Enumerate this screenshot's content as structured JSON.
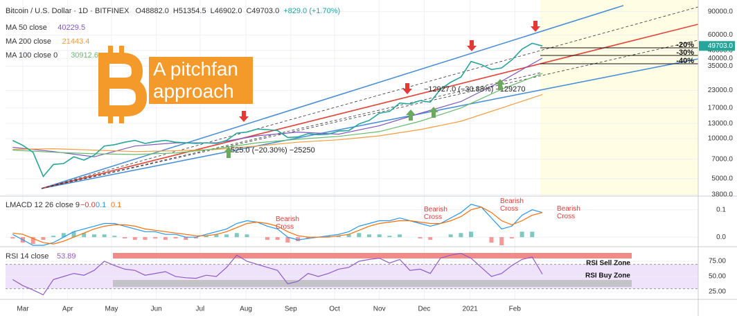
{
  "chart_data": {
    "type": "line",
    "title": "Bitcoin / U.S. Dollar · 1D · BITFINEX",
    "ohlc": [
      "O48882.0",
      "H51354.5",
      "L46902.0",
      "C49703.0"
    ],
    "change": "+829.0 (+1.70%)",
    "overlay_title": "A pitchfan approach",
    "x": [
      -1,
      0,
      1,
      2,
      3,
      4,
      5,
      6,
      7,
      8,
      9,
      10,
      11,
      12,
      13,
      14,
      15,
      16,
      17,
      18,
      19,
      20,
      21,
      22,
      23,
      24,
      25,
      26,
      27,
      28,
      29,
      30,
      31,
      32,
      33,
      34,
      35,
      36,
      37,
      38,
      39,
      40,
      41,
      42,
      43,
      44,
      45,
      46,
      47,
      48,
      49,
      50,
      51
    ],
    "values": [
      9700,
      8900,
      7900,
      5200,
      6400,
      6500,
      7300,
      6900,
      7500,
      8800,
      9000,
      9400,
      9700,
      9200,
      9500,
      9700,
      9400,
      9300,
      9200,
      9300,
      9200,
      9700,
      11000,
      11200,
      11800,
      11700,
      11500,
      10200,
      10300,
      10900,
      10700,
      10800,
      11400,
      11500,
      12900,
      13700,
      15500,
      16000,
      18500,
      18200,
      19300,
      18800,
      23500,
      26500,
      29000,
      38000,
      36000,
      33000,
      34000,
      39000,
      47000,
      52000,
      49703
    ],
    "color": "#26a69a",
    "xlim": [
      -1.7,
      66.3
    ],
    "xticks": [
      {
        "value": 0,
        "label": "Mar"
      },
      {
        "value": 4.4,
        "label": "Apr"
      },
      {
        "value": 8.7,
        "label": "May"
      },
      {
        "value": 13.1,
        "label": "Jun"
      },
      {
        "value": 17.4,
        "label": "Jul"
      },
      {
        "value": 21.9,
        "label": "Aug"
      },
      {
        "value": 26.3,
        "label": "Sep"
      },
      {
        "value": 30.6,
        "label": "Oct"
      },
      {
        "value": 35,
        "label": "Nov"
      },
      {
        "value": 39.4,
        "label": "Dec"
      },
      {
        "value": 43.9,
        "label": "2021"
      },
      {
        "value": 48.3,
        "label": "Feb"
      }
    ],
    "ylim": [
      3700,
      110000
    ],
    "log_scale": true,
    "grid": true,
    "yticks": [
      {
        "value": 90000,
        "label": "90000.0"
      },
      {
        "value": 60000,
        "label": "60000.0"
      },
      {
        "value": 46000,
        "label": "46000.0"
      },
      {
        "value": 40000,
        "label": "40000.0"
      },
      {
        "value": 35000,
        "label": "35000.0"
      },
      {
        "value": 23000,
        "label": "23000.0"
      },
      {
        "value": 17000,
        "label": "17000.0"
      },
      {
        "value": 13000,
        "label": "13000.0"
      },
      {
        "value": 10000,
        "label": "10000.0"
      },
      {
        "value": 7000,
        "label": "7000.0"
      },
      {
        "value": 5000,
        "label": "5000.0"
      },
      {
        "value": 3800,
        "label": "3800.0"
      }
    ],
    "price_label": {
      "value": 49703,
      "label": "49703.0"
    },
    "series": [
      {
        "name": "MA 50 close",
        "legend_value": "40229.5",
        "color": "#7e57c2",
        "x": [
          -1,
          3,
          7,
          11,
          15,
          19,
          23,
          27,
          31,
          35,
          39,
          43,
          47,
          51
        ],
        "values": [
          8600,
          8000,
          7300,
          8800,
          9300,
          9300,
          10500,
          11200,
          10800,
          12500,
          15500,
          19000,
          27000,
          40229.5
        ]
      },
      {
        "name": "MA 200 close",
        "legend_value": "21443.4",
        "color": "#f59b3a",
        "x": [
          -1,
          3,
          7,
          11,
          15,
          19,
          23,
          27,
          31,
          35,
          39,
          43,
          47,
          51
        ],
        "values": [
          8300,
          8400,
          8200,
          8000,
          8100,
          8300,
          8800,
          9400,
          9800,
          10500,
          11700,
          13500,
          17000,
          21443.4
        ]
      },
      {
        "name": "MA 100 close 0",
        "legend_value": "30912.6",
        "color": "#66bb6a",
        "x": [
          -1,
          3,
          7,
          11,
          15,
          19,
          23,
          27,
          31,
          35,
          39,
          43,
          47,
          51
        ],
        "values": [
          8200,
          7900,
          7700,
          7600,
          7800,
          8400,
          9300,
          9900,
          10400,
          11300,
          13500,
          17000,
          23500,
          30912.6
        ]
      }
    ],
    "fib_labels": [
      "-20%",
      "-30%",
      "-40%"
    ],
    "measures": [
      "−12927.0 (−30.88%) −129270",
      "525.0 (−20.30%) −25250"
    ],
    "panels": [
      {
        "type": "macd",
        "title": "LMACD 12 26 close 9",
        "legend_values": [
          "−0.0",
          "0.1",
          "0.1"
        ],
        "ylim": [
          -0.035,
          0.15
        ],
        "yticks": [
          {
            "value": 0.1,
            "label": "0.1"
          },
          {
            "value": 0,
            "label": "0.0"
          }
        ],
        "series": [
          {
            "color": "#2196f3",
            "values": [
              0.01,
              -0.01,
              -0.03,
              -0.03,
              -0.02,
              0,
              0.02,
              0.03,
              0.04,
              0.05,
              0.05,
              0.04,
              0.03,
              0.02,
              0.02,
              0.01,
              0.01,
              0,
              0,
              0.01,
              0.02,
              0.03,
              0.05,
              0.06,
              0.055,
              0.04,
              0.03,
              0,
              -0.01,
              -0.005,
              0,
              0.005,
              0.01,
              0.02,
              0.04,
              0.05,
              0.06,
              0.06,
              0.07,
              0.06,
              0.05,
              0.04,
              0.05,
              0.07,
              0.09,
              0.12,
              0.11,
              0.07,
              0.03,
              0.04,
              0.08,
              0.1,
              0.09
            ]
          },
          {
            "color": "#ff6d00",
            "values": [
              0.015,
              0.01,
              -0.005,
              -0.02,
              -0.025,
              -0.015,
              0,
              0.015,
              0.03,
              0.04,
              0.045,
              0.045,
              0.04,
              0.03,
              0.025,
              0.02,
              0.015,
              0.01,
              0.005,
              0.005,
              0.01,
              0.02,
              0.035,
              0.05,
              0.055,
              0.05,
              0.04,
              0.02,
              0.005,
              0,
              0,
              0,
              0.005,
              0.01,
              0.025,
              0.04,
              0.05,
              0.055,
              0.06,
              0.06,
              0.055,
              0.05,
              0.05,
              0.06,
              0.075,
              0.1,
              0.11,
              0.09,
              0.06,
              0.045,
              0.06,
              0.08,
              0.09
            ]
          }
        ],
        "histogram": {
          "up_color": "#26a69a",
          "down_color": "#ef5350",
          "values": [
            -0.005,
            -0.02,
            -0.025,
            -0.01,
            0.005,
            0.015,
            0.02,
            0.015,
            0.01,
            0.01,
            0.005,
            -0.005,
            -0.01,
            -0.01,
            -0.005,
            -0.01,
            -0.005,
            -0.01,
            -0.005,
            0.005,
            0.01,
            0.01,
            0.015,
            0.01,
            0,
            -0.01,
            -0.01,
            -0.02,
            -0.015,
            -0.005,
            0,
            0.005,
            0.005,
            0.01,
            0.015,
            0.01,
            0.01,
            0.005,
            0.01,
            0,
            -0.005,
            -0.01,
            0,
            0.01,
            0.015,
            0.02,
            0,
            -0.02,
            -0.03,
            -0.005,
            0.02,
            0.02,
            0
          ]
        },
        "annotations": [
          "Bearish Cross",
          "Bearish Cross",
          "Bearish Cross",
          "Bearish Cross"
        ]
      },
      {
        "type": "rsi",
        "title": "RSI 14 close",
        "legend_value": "53.89",
        "color": "#8e5bc9",
        "ylim": [
          12.5,
          96.6
        ],
        "yticks": [
          {
            "value": 75,
            "label": "75.00"
          },
          {
            "value": 50,
            "label": "50.00"
          },
          {
            "value": 25,
            "label": "25.00"
          }
        ],
        "band": [
          30,
          70
        ],
        "band_color": "#efe3fb",
        "values": [
          45,
          35,
          28,
          20,
          45,
          50,
          55,
          52,
          60,
          75,
          68,
          62,
          60,
          52,
          55,
          58,
          50,
          48,
          47,
          52,
          50,
          65,
          85,
          75,
          70,
          65,
          60,
          38,
          42,
          55,
          50,
          55,
          62,
          65,
          75,
          78,
          80,
          72,
          78,
          60,
          62,
          55,
          80,
          85,
          88,
          80,
          65,
          50,
          55,
          68,
          78,
          82,
          53.89
        ],
        "zones": [
          "RSI Sell Zone",
          "RSI Buy Zone"
        ]
      }
    ]
  }
}
